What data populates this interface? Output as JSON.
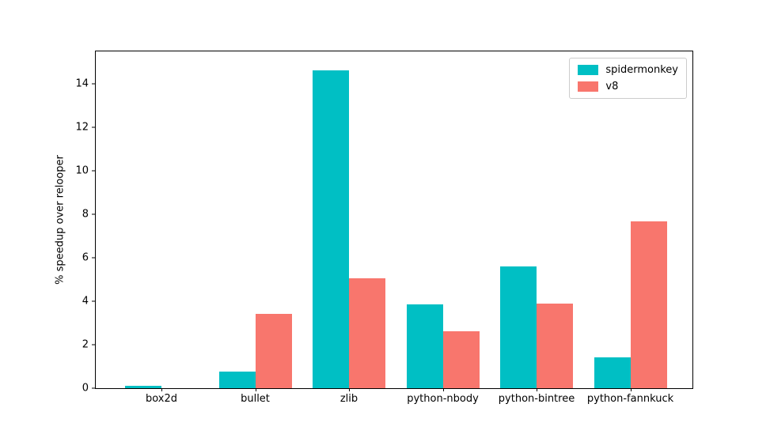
{
  "figure": {
    "background": "#ffffff"
  },
  "chart_data": {
    "type": "bar",
    "title": "",
    "xlabel": "",
    "ylabel": "% speedup over relooper",
    "categories": [
      "box2d",
      "bullet",
      "zlib",
      "python-nbody",
      "python-bintree",
      "python-fannkuck"
    ],
    "series": [
      {
        "name": "spidermonkey",
        "color": "#00bfc4",
        "values": [
          0.1,
          0.75,
          14.6,
          3.85,
          5.6,
          1.4
        ]
      },
      {
        "name": "v8",
        "color": "#f8766d",
        "values": [
          0,
          3.4,
          5.05,
          2.6,
          3.9,
          7.65
        ]
      }
    ],
    "ylim": [
      0,
      15.47
    ],
    "yticks": [
      0,
      2,
      4,
      6,
      8,
      10,
      12,
      14
    ],
    "legend_position": "upper right",
    "grid": false,
    "axis_color": "#000000",
    "legend_border_color": "#cccccc"
  }
}
